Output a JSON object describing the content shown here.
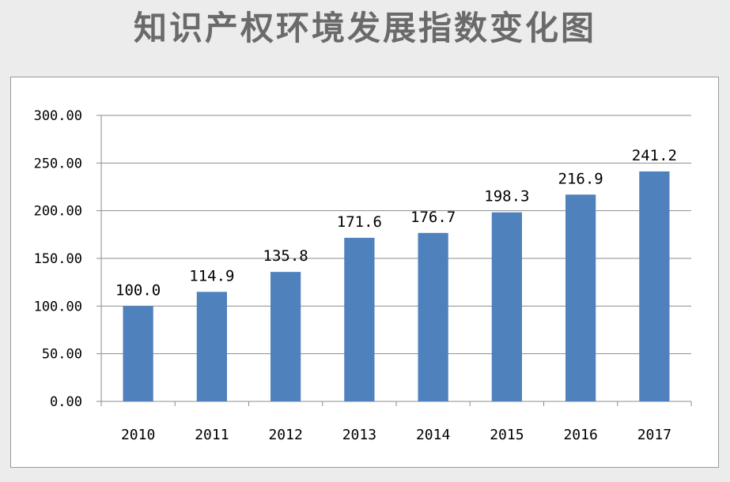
{
  "title": "知识产权环境发展指数变化图",
  "chart_data": {
    "type": "bar",
    "title": "",
    "categories": [
      "2010",
      "2011",
      "2012",
      "2013",
      "2014",
      "2015",
      "2016",
      "2017"
    ],
    "values": [
      100.0,
      114.9,
      135.8,
      171.6,
      176.7,
      198.3,
      216.9,
      241.2
    ],
    "data_labels": [
      "100.0",
      "114.9",
      "135.8",
      "171.6",
      "176.7",
      "198.3",
      "216.9",
      "241.2"
    ],
    "ylim": [
      0,
      300
    ],
    "yticks": [
      0,
      50,
      100,
      150,
      200,
      250,
      300
    ],
    "ytick_labels": [
      "0.00",
      "50.00",
      "100.00",
      "150.00",
      "200.00",
      "250.00",
      "300.00"
    ],
    "xlabel": "",
    "ylabel": "",
    "grid": true,
    "legend": "none",
    "bar_color": "#4f81bd"
  }
}
